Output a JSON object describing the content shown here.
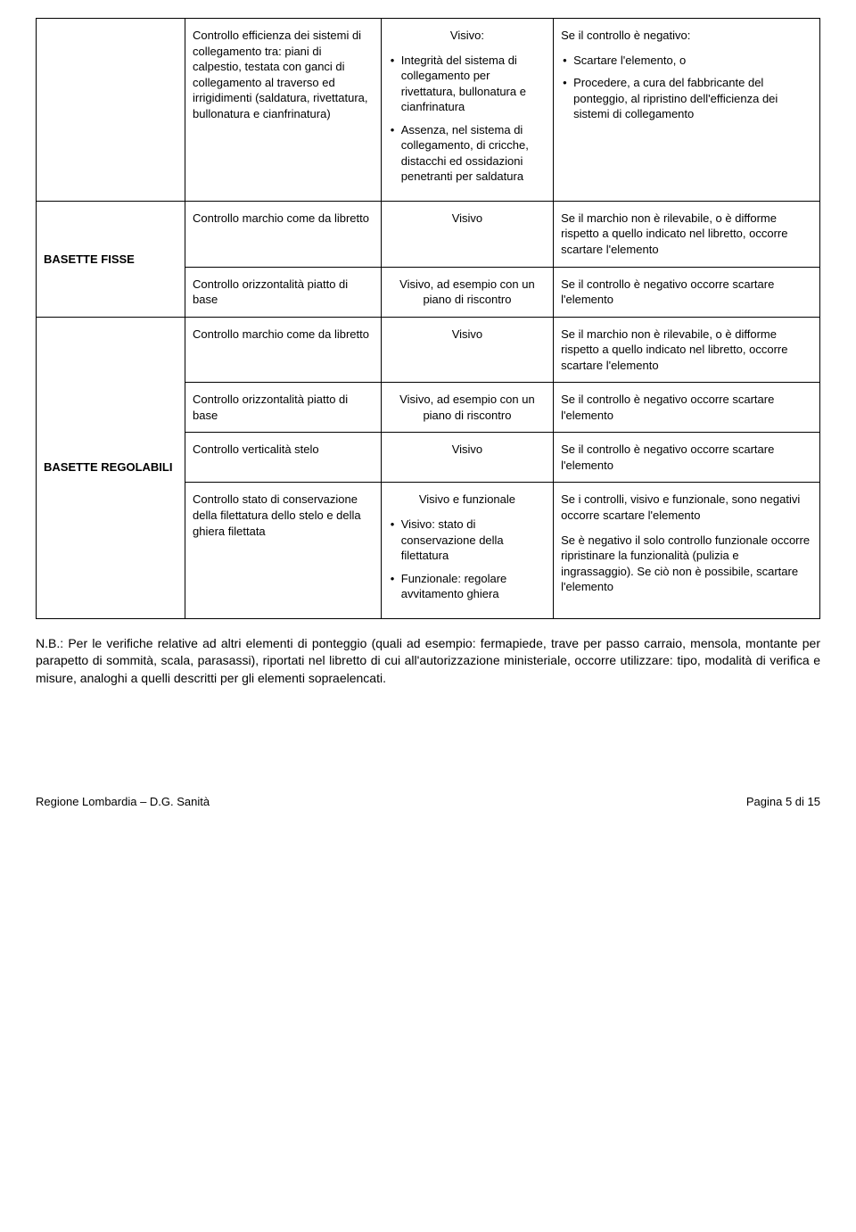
{
  "table": {
    "row1": {
      "cell2": "Controllo efficienza dei sistemi di collegamento tra: piani di calpestio, testata con ganci di collegamento al traverso ed irrigidimenti (saldatura, rivettatura, bullonatura e cianfrinatura)",
      "cell3_header": "Visivo:",
      "cell3_bullet1": "Integrità del sistema di collegamento per rivettatura, bullonatura e cianfrinatura",
      "cell3_bullet2": "Assenza, nel sistema di collegamento, di cricche, distacchi ed ossidazioni penetranti per saldatura",
      "cell4_intro": "Se il controllo è negativo:",
      "cell4_bullet1": "Scartare l'elemento, o",
      "cell4_bullet2": "Procedere, a cura del fabbricante del ponteggio, al ripristino dell'efficienza dei sistemi di collegamento"
    },
    "basette_fisse": {
      "label": "BASETTE FISSE",
      "r1c2": "Controllo marchio come da libretto",
      "r1c3": "Visivo",
      "r1c4": "Se il marchio non è rilevabile, o è difforme rispetto a quello indicato nel libretto, occorre scartare l'elemento",
      "r2c2": "Controllo orizzontalità piatto di base",
      "r2c3": "Visivo, ad esempio con un piano di riscontro",
      "r2c4": "Se il controllo è negativo occorre scartare l'elemento"
    },
    "basette_regolabili": {
      "label": "BASETTE REGOLABILI",
      "r1c2": "Controllo marchio come da libretto",
      "r1c3": "Visivo",
      "r1c4": "Se il marchio non è rilevabile, o è difforme rispetto a quello indicato nel libretto, occorre scartare l'elemento",
      "r2c2": "Controllo orizzontalità piatto di base",
      "r2c3": "Visivo, ad esempio con un piano di riscontro",
      "r2c4": "Se il controllo è negativo occorre scartare l'elemento",
      "r3c2": "Controllo verticalità stelo",
      "r3c3": "Visivo",
      "r3c4": "Se il controllo è negativo occorre scartare l'elemento",
      "r4c2": "Controllo stato di conservazione della filettatura dello stelo e della ghiera filettata",
      "r4c3_header": "Visivo e funzionale",
      "r4c3_bullet1": "Visivo: stato di conservazione della filettatura",
      "r4c3_bullet2": "Funzionale: regolare avvitamento ghiera",
      "r4c4_p1": "Se i controlli, visivo e funzionale, sono negativi occorre scartare l'elemento",
      "r4c4_p2": "Se è negativo il solo controllo funzionale occorre ripristinare la funzionalità (pulizia e ingrassaggio). Se ciò non è possibile, scartare l'elemento"
    }
  },
  "note": "N.B.: Per le verifiche relative ad altri elementi di ponteggio (quali ad esempio: fermapiede, trave per passo carraio, mensola, montante per parapetto di sommità, scala, parasassi), riportati nel libretto di cui all'autorizzazione ministeriale, occorre utilizzare: tipo, modalità di verifica e misure, analoghi a quelli descritti per gli elementi sopraelencati.",
  "footer": {
    "left": "Regione Lombardia – D.G. Sanità",
    "right": "Pagina 5 di 15"
  }
}
